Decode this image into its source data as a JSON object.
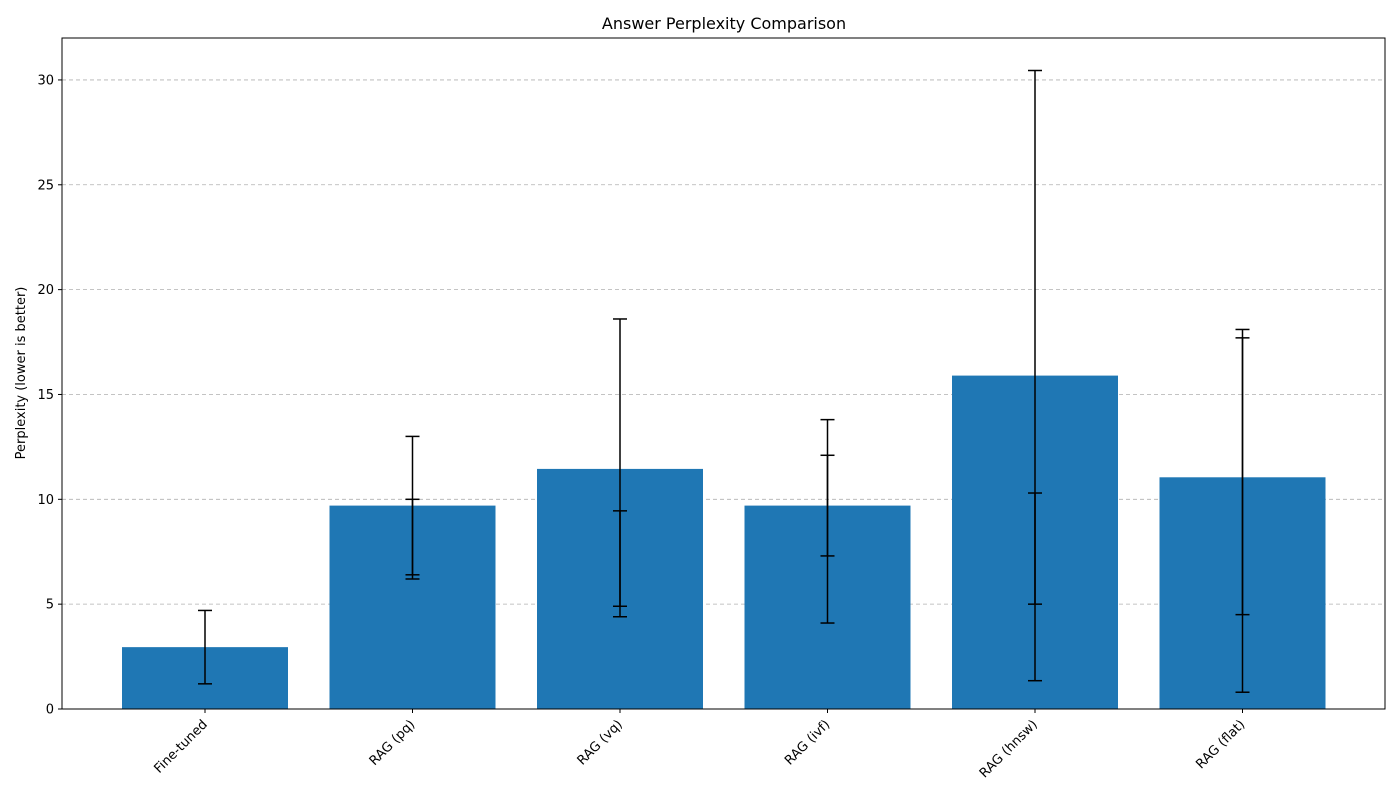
{
  "chart_data": {
    "type": "bar",
    "title": "Answer Perplexity Comparison",
    "xlabel": "",
    "ylabel": "Perplexity (lower is better)",
    "ylim": [
      0,
      32
    ],
    "yticks": [
      0,
      5,
      10,
      15,
      20,
      25,
      30
    ],
    "grid": "y-dashed",
    "bar_color": "#1f77b4",
    "categories": [
      "Fine-tuned",
      "RAG (pq)",
      "RAG (vq)",
      "RAG (ivf)",
      "RAG (hnsw)",
      "RAG (flat)"
    ],
    "values": [
      2.95,
      9.7,
      11.45,
      9.7,
      15.9,
      11.05
    ],
    "error_bars": [
      [
        {
          "low": 1.2,
          "high": 4.7
        }
      ],
      [
        {
          "low": 6.4,
          "high": 13.0
        },
        {
          "low": 6.2,
          "high": 10.0
        }
      ],
      [
        {
          "low": 4.4,
          "high": 18.6
        },
        {
          "low": 4.9,
          "high": 9.45
        }
      ],
      [
        {
          "low": 4.1,
          "high": 13.8
        },
        {
          "low": 7.3,
          "high": 12.1
        }
      ],
      [
        {
          "low": 1.35,
          "high": 30.45
        },
        {
          "low": 5.0,
          "high": 10.3
        }
      ],
      [
        {
          "low": 0.8,
          "high": 18.1
        },
        {
          "low": 4.5,
          "high": 17.7
        }
      ]
    ]
  }
}
